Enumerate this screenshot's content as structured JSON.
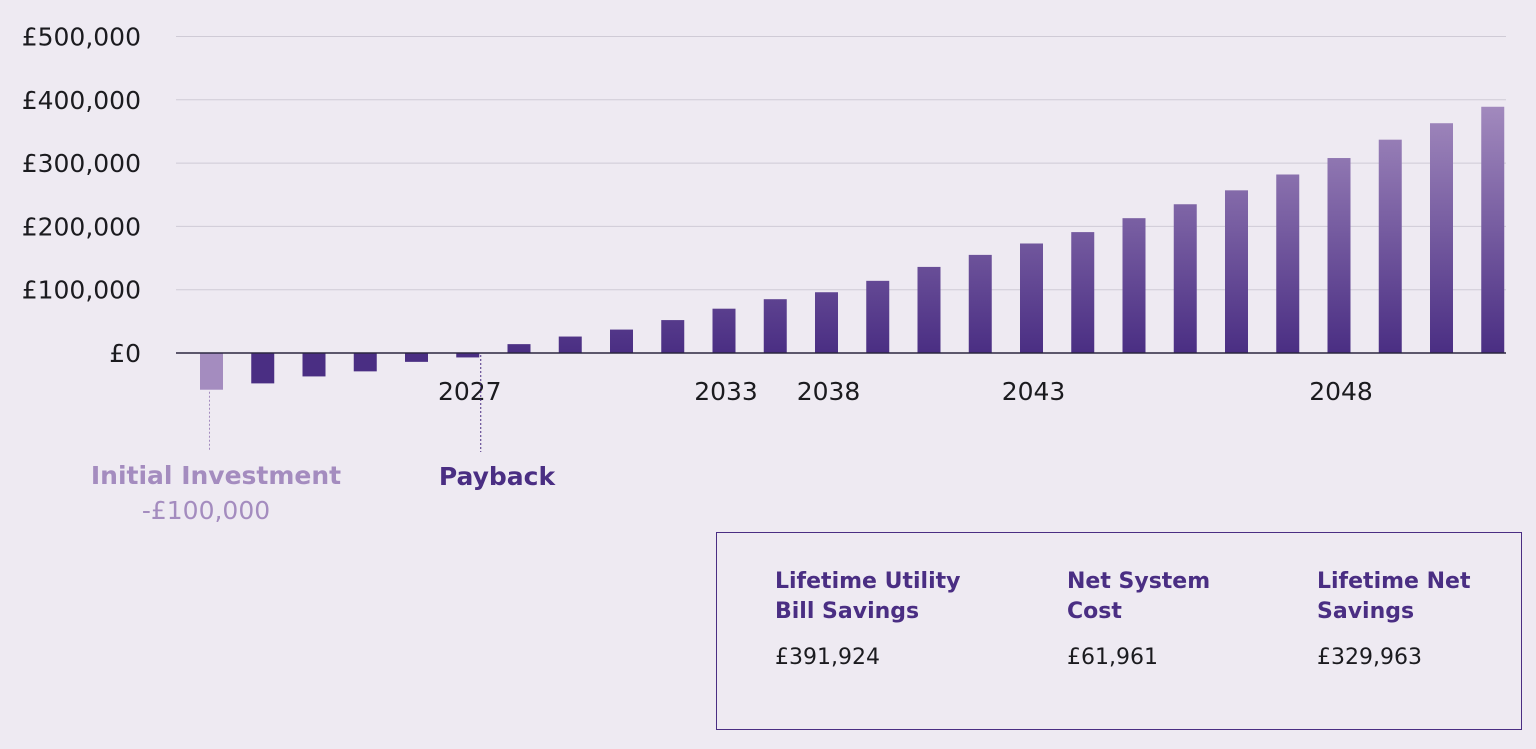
{
  "colors": {
    "background": "#eeeaf2",
    "bar_top": "#a48cbf",
    "bar_bottom": "#4a2e83",
    "initial_bar": "#a48cbf",
    "negative_bar": "#4a2e83",
    "gridline": "#cfcbd6",
    "zero_line": "#2b2640",
    "text": "#1b1b1f"
  },
  "chart_data": {
    "type": "bar",
    "title": "",
    "xlabel": "",
    "ylabel": "",
    "ylim": [
      -100000,
      500000
    ],
    "y_ticks": [
      0,
      100000,
      200000,
      300000,
      400000,
      500000
    ],
    "y_tick_labels": [
      "£0",
      "£100,000",
      "£200,000",
      "£300,000",
      "£400,000",
      "£500,000"
    ],
    "grid": true,
    "legend": "none",
    "categories": [
      "",
      "",
      "",
      "",
      "",
      "2027",
      "",
      "",
      "",
      "",
      "2033",
      "",
      "2038",
      "",
      "",
      "",
      "2043",
      "",
      "",
      "",
      "",
      "",
      "2048",
      "",
      "",
      ""
    ],
    "values": [
      -58000,
      -48000,
      -37000,
      -29000,
      -14000,
      -7000,
      14000,
      26000,
      37000,
      52000,
      70000,
      85000,
      96000,
      114000,
      136000,
      155000,
      173000,
      191000,
      213000,
      235000,
      257000,
      282000,
      308000,
      337000,
      363000,
      389000
    ],
    "annotations": {
      "initial_investment": {
        "label": "Initial Investment",
        "value": "-£100,000",
        "bar_index": 0
      },
      "payback": {
        "label": "Payback",
        "bar_index": 5
      }
    }
  },
  "summary": {
    "items": [
      {
        "label_line1": "Lifetime Utility",
        "label_line2": "Bill Savings",
        "value": "£391,924"
      },
      {
        "label_line1": "Net System",
        "label_line2": "Cost",
        "value": "£61,961"
      },
      {
        "label_line1": "Lifetime Net",
        "label_line2": "Savings",
        "value": "£329,963"
      }
    ]
  }
}
